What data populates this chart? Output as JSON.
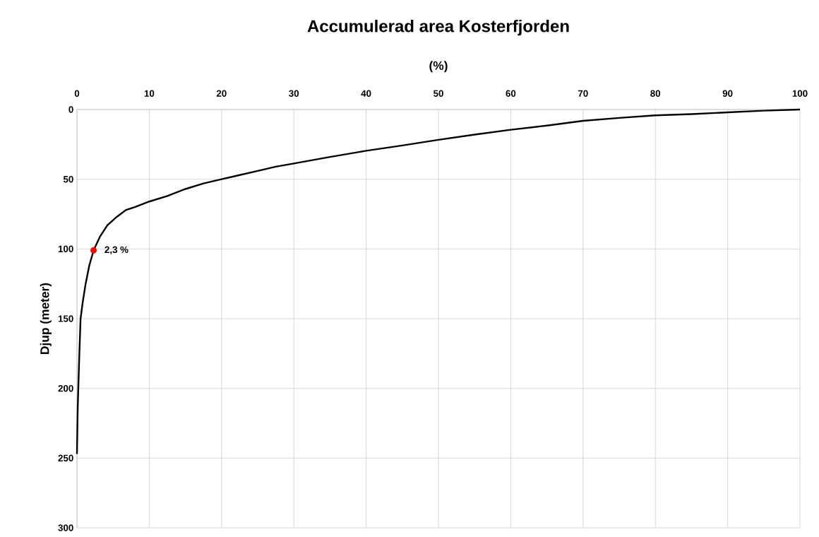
{
  "chart_data": {
    "type": "line",
    "title": "Accumulerad area Kosterfjorden",
    "xlabel": "(%)",
    "ylabel": "Djup (meter)",
    "xlim": [
      0,
      100
    ],
    "xticks": [
      0,
      10,
      20,
      30,
      40,
      50,
      60,
      70,
      80,
      90,
      100
    ],
    "ylim": [
      300,
      0
    ],
    "yticks": [
      0,
      50,
      100,
      150,
      200,
      250,
      300
    ],
    "grid": true,
    "line_style": "solid",
    "series": [
      {
        "color": "#000000",
        "marker": "none",
        "x": [
          0,
          0.1,
          0.3,
          0.5,
          0.8,
          1.2,
          1.7,
          2.3,
          3.2,
          4.2,
          5.5,
          6.8,
          8,
          10,
          12.5,
          15,
          17.5,
          20,
          22.5,
          25,
          27.5,
          30,
          35,
          40,
          45,
          50,
          55,
          60,
          65,
          70,
          75,
          80,
          85,
          90,
          95,
          100
        ],
        "values": [
          247,
          215,
          180,
          150,
          138,
          125,
          112,
          101,
          91,
          83,
          77,
          72,
          70,
          66,
          62,
          57,
          53,
          50,
          47,
          44,
          41,
          38.7,
          34,
          29.6,
          25.8,
          21.7,
          18,
          14.5,
          11.5,
          8.1,
          6,
          4.2,
          3.3,
          2,
          0.8,
          0
        ]
      },
      {
        "type": "scatter",
        "color": "#ff0000",
        "marker": "circle",
        "x": [
          2.3
        ],
        "values": [
          101
        ]
      }
    ],
    "annotations": [
      {
        "text": "2,3 %",
        "x": 2.3,
        "y": 101
      }
    ]
  }
}
